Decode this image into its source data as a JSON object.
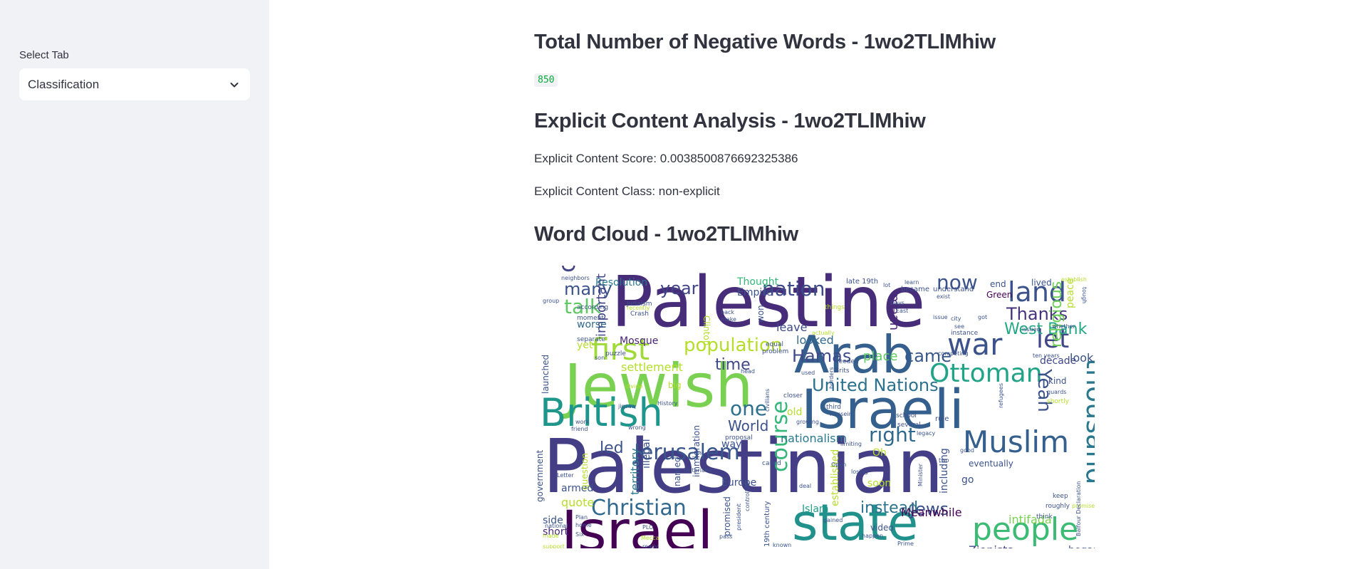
{
  "sidebar": {
    "select_label": "Select Tab",
    "select_value": "Classification",
    "chevron_icon": "chevron-down-icon"
  },
  "main": {
    "negative_words_title": "Total Number of Negative Words - 1wo2TLlMhiw",
    "negative_words_count": "850",
    "explicit_title": "Explicit Content Analysis - 1wo2TLlMhiw",
    "explicit_score": "Explicit Content Score: 0.0038500876692325386",
    "explicit_class": "Explicit Content Class: non-explicit",
    "wordcloud_title": "Word Cloud - 1wo2TLlMhiw"
  },
  "wordcloud": {
    "words": [
      {
        "text": "Palestine",
        "color": "#472c7a"
      },
      {
        "text": "Palestinian",
        "color": "#433e85"
      },
      {
        "text": "Jewish",
        "color": "#7ad151"
      },
      {
        "text": "Israeli",
        "color": "#355f8d"
      },
      {
        "text": "Arab",
        "color": "#355f8d"
      },
      {
        "text": "British",
        "color": "#1f968b"
      },
      {
        "text": "Israel",
        "color": "#440154"
      },
      {
        "text": "state",
        "color": "#21918c"
      },
      {
        "text": "people",
        "color": "#3cbb75"
      },
      {
        "text": "Muslim",
        "color": "#355f8d"
      },
      {
        "text": "Ottoman",
        "color": "#20a386"
      },
      {
        "text": "war",
        "color": "#3b528b"
      },
      {
        "text": "let",
        "color": "#404688"
      },
      {
        "text": "land",
        "color": "#3b528b"
      },
      {
        "text": "now",
        "color": "#3b528b"
      },
      {
        "text": "nation",
        "color": "#3e4989"
      },
      {
        "text": "conflict",
        "color": "#414487"
      },
      {
        "text": "first",
        "color": "#a0da39"
      },
      {
        "text": "population",
        "color": "#b5de2b"
      },
      {
        "text": "Jerusalem",
        "color": "#39568c"
      },
      {
        "text": "thousand",
        "color": "#2a788e"
      },
      {
        "text": "Christian",
        "color": "#31688e"
      },
      {
        "text": "United Nations",
        "color": "#2c728e"
      },
      {
        "text": "West Bank",
        "color": "#22a884"
      },
      {
        "text": "Thanks",
        "color": "#46327e"
      },
      {
        "text": "Hamas",
        "color": "#3e4989"
      },
      {
        "text": "came",
        "color": "#38588c"
      },
      {
        "text": "talk",
        "color": "#5ec962"
      },
      {
        "text": "many",
        "color": "#3b528b"
      },
      {
        "text": "year",
        "color": "#414487"
      },
      {
        "text": "time",
        "color": "#3f4788"
      },
      {
        "text": "one",
        "color": "#2d708e"
      },
      {
        "text": "World",
        "color": "#3b528b"
      },
      {
        "text": "right",
        "color": "#31688e"
      },
      {
        "text": "course",
        "color": "#35b779"
      },
      {
        "text": "Jews",
        "color": "#3b528b"
      },
      {
        "text": "Yeah",
        "color": "#3b528b"
      },
      {
        "text": "religious",
        "color": "#6ece58"
      },
      {
        "text": "Zionists",
        "color": "#414487"
      },
      {
        "text": "intifada",
        "color": "#7ad151"
      },
      {
        "text": "instead",
        "color": "#2c728e"
      },
      {
        "text": "Meanwhile",
        "color": "#440154"
      },
      {
        "text": "led",
        "color": "#3b528b"
      },
      {
        "text": "important",
        "color": "#414487"
      },
      {
        "text": "settlement",
        "color": "#b5de2b"
      },
      {
        "text": "Resolution",
        "color": "#2a788e"
      },
      {
        "text": "Thought",
        "color": "#35b779"
      },
      {
        "text": "Empire",
        "color": "#3b528b"
      },
      {
        "text": "Mosque",
        "color": "#482475"
      },
      {
        "text": "nationalism",
        "color": "#2a788e"
      },
      {
        "text": "look",
        "color": "#3b528b"
      },
      {
        "text": "decade",
        "color": "#3e4989"
      },
      {
        "text": "place",
        "color": "#5ec962"
      },
      {
        "text": "looked",
        "color": "#31688e"
      },
      {
        "text": "mean",
        "color": "#482878"
      },
      {
        "text": "leave",
        "color": "#3e4989"
      },
      {
        "text": "Europe",
        "color": "#3b528b"
      },
      {
        "text": "Islam",
        "color": "#1f9e89"
      },
      {
        "text": "quote",
        "color": "#b5de2b"
      },
      {
        "text": "armed",
        "color": "#3b528b"
      },
      {
        "text": "side",
        "color": "#3b528b"
      },
      {
        "text": "short",
        "color": "#482878"
      },
      {
        "text": "began",
        "color": "#3b528b"
      },
      {
        "text": "go",
        "color": "#3b528b"
      },
      {
        "text": "soon",
        "color": "#b5de2b"
      },
      {
        "text": "video",
        "color": "#3b528b"
      },
      {
        "text": "yet",
        "color": "#b5de2b"
      },
      {
        "text": "worse",
        "color": "#31688e"
      },
      {
        "text": "territory",
        "color": "#2a788e"
      },
      {
        "text": "illegal",
        "color": "#3b528b"
      },
      {
        "text": "named",
        "color": "#3b528b"
      },
      {
        "text": "way",
        "color": "#3b528b"
      },
      {
        "text": "old",
        "color": "#b5de2b"
      },
      {
        "text": "end",
        "color": "#3b528b"
      },
      {
        "text": "Green",
        "color": "#440154"
      },
      {
        "text": "lived",
        "color": "#3b528b"
      },
      {
        "text": "peace",
        "color": "#b5de2b"
      },
      {
        "text": "established",
        "color": "#b5de2b"
      },
      {
        "text": "including",
        "color": "#3b528b"
      },
      {
        "text": "promised",
        "color": "#3b528b"
      },
      {
        "text": "kind",
        "color": "#3b528b"
      },
      {
        "text": "Oh",
        "color": "#b5de2b"
      },
      {
        "text": "eventually",
        "color": "#3b528b"
      },
      {
        "text": "government",
        "color": "#3b528b"
      },
      {
        "text": "launched",
        "color": "#3b528b"
      },
      {
        "text": "question",
        "color": "#b5de2b"
      },
      {
        "text": "immigration",
        "color": "#3b528b"
      },
      {
        "text": "19th century",
        "color": "#3b528b"
      },
      {
        "text": "won",
        "color": "#3b528b"
      },
      {
        "text": "Clinton",
        "color": "#b5de2b"
      },
      {
        "text": "became",
        "color": "#3b528b"
      },
      {
        "text": "understand",
        "color": "#3b528b"
      },
      {
        "text": "late 19th",
        "color": "#3b528b"
      },
      {
        "text": "according",
        "color": "#3b528b"
      },
      {
        "text": "separate",
        "color": "#3b528b"
      },
      {
        "text": "moment",
        "color": "#3b528b"
      },
      {
        "text": "puzzle",
        "color": "#3b528b"
      },
      {
        "text": "Judaism",
        "color": "#3b528b"
      },
      {
        "text": "Crash",
        "color": "#3b528b"
      },
      {
        "text": "neighbors",
        "color": "#3b528b"
      },
      {
        "text": "group",
        "color": "#3b528b"
      },
      {
        "text": "things",
        "color": "#b5de2b"
      },
      {
        "text": "needed",
        "color": "#3b528b"
      },
      {
        "text": "Brits",
        "color": "#3b528b"
      },
      {
        "text": "problem",
        "color": "#3b528b"
      },
      {
        "text": "equal",
        "color": "#3b528b"
      },
      {
        "text": "closer",
        "color": "#3b528b"
      },
      {
        "text": "third",
        "color": "#3b528b"
      },
      {
        "text": "school",
        "color": "#3b528b"
      },
      {
        "text": "several",
        "color": "#3b528b"
      },
      {
        "text": "legacy",
        "color": "#3b528b"
      },
      {
        "text": "rule",
        "color": "#3b528b"
      },
      {
        "text": "competing",
        "color": "#3b528b"
      },
      {
        "text": "ten years",
        "color": "#3b528b"
      },
      {
        "text": "instance",
        "color": "#3b528b"
      },
      {
        "text": "issued",
        "color": "#3b528b"
      },
      {
        "text": "whether",
        "color": "#3b528b"
      },
      {
        "text": "guards",
        "color": "#3b528b"
      },
      {
        "text": "shortly",
        "color": "#b5de2b"
      },
      {
        "text": "think",
        "color": "#3b528b"
      },
      {
        "text": "keep",
        "color": "#3b528b"
      },
      {
        "text": "roughly",
        "color": "#3b528b"
      },
      {
        "text": "promise",
        "color": "#b5de2b"
      },
      {
        "text": "called",
        "color": "#3b528b"
      },
      {
        "text": "proposal",
        "color": "#3b528b"
      },
      {
        "text": "historians",
        "color": "#3b528b"
      },
      {
        "text": "gained",
        "color": "#3b528b"
      },
      {
        "text": "controlled",
        "color": "#3b528b"
      },
      {
        "text": "president",
        "color": "#3b528b"
      },
      {
        "text": "Prime",
        "color": "#3b528b"
      },
      {
        "text": "known",
        "color": "#3b528b"
      },
      {
        "text": "really",
        "color": "#3b528b"
      },
      {
        "text": "pass",
        "color": "#3b528b"
      },
      {
        "text": "support",
        "color": "#b5de2b"
      },
      {
        "text": "made",
        "color": "#b5de2b"
      },
      {
        "text": "national",
        "color": "#3b528b"
      },
      {
        "text": "Six",
        "color": "#3b528b"
      },
      {
        "text": "home",
        "color": "#3b528b"
      },
      {
        "text": "Plan",
        "color": "#3b528b"
      },
      {
        "text": "PLO",
        "color": "#3b528b"
      },
      {
        "text": "happen",
        "color": "#3b528b"
      },
      {
        "text": "Minister",
        "color": "#3b528b"
      },
      {
        "text": "Balfour Declaration",
        "color": "#3b528b"
      },
      {
        "text": "Mecca",
        "color": "#b5de2b"
      },
      {
        "text": "Letter",
        "color": "#3b528b"
      },
      {
        "text": "wrong",
        "color": "#3b528b"
      },
      {
        "text": "friend",
        "color": "#3b528b"
      },
      {
        "text": "work",
        "color": "#3b528b"
      },
      {
        "text": "History",
        "color": "#3b528b"
      },
      {
        "text": "jigsaw",
        "color": "#3b528b"
      },
      {
        "text": "divide",
        "color": "#b5de2b"
      },
      {
        "text": "big",
        "color": "#b5de2b"
      },
      {
        "text": "Hussein",
        "color": "#3b528b"
      },
      {
        "text": "growing",
        "color": "#3b528b"
      },
      {
        "text": "civilians",
        "color": "#3b528b"
      },
      {
        "text": "Days",
        "color": "#3b528b"
      },
      {
        "text": "East",
        "color": "#3b528b"
      },
      {
        "text": "city",
        "color": "#3b528b"
      },
      {
        "text": "see",
        "color": "#3b528b"
      },
      {
        "text": "got",
        "color": "#3b528b"
      },
      {
        "text": "issue",
        "color": "#3b528b"
      },
      {
        "text": "exist",
        "color": "#3b528b"
      },
      {
        "text": "lot",
        "color": "#3b528b"
      },
      {
        "text": "good",
        "color": "#3b528b"
      },
      {
        "text": "two",
        "color": "#3b528b"
      },
      {
        "text": "deal",
        "color": "#3b528b"
      },
      {
        "text": "Open",
        "color": "#3b528b"
      },
      {
        "text": "losing",
        "color": "#3b528b"
      },
      {
        "text": "refugees",
        "color": "#3b528b"
      },
      {
        "text": "limiting",
        "color": "#3b528b"
      },
      {
        "text": "used",
        "color": "#3b528b"
      },
      {
        "text": "son",
        "color": "#3b528b"
      },
      {
        "text": "back",
        "color": "#3b528b"
      },
      {
        "text": "make",
        "color": "#3b528b"
      },
      {
        "text": "actually",
        "color": "#b5de2b"
      },
      {
        "text": "recently",
        "color": "#b5de2b"
      },
      {
        "text": "head",
        "color": "#3b528b"
      },
      {
        "text": "borders",
        "color": "#3b528b"
      },
      {
        "text": "establish",
        "color": "#b5de2b"
      },
      {
        "text": "tough",
        "color": "#3b528b"
      },
      {
        "text": "learn",
        "color": "#3b528b"
      }
    ]
  }
}
